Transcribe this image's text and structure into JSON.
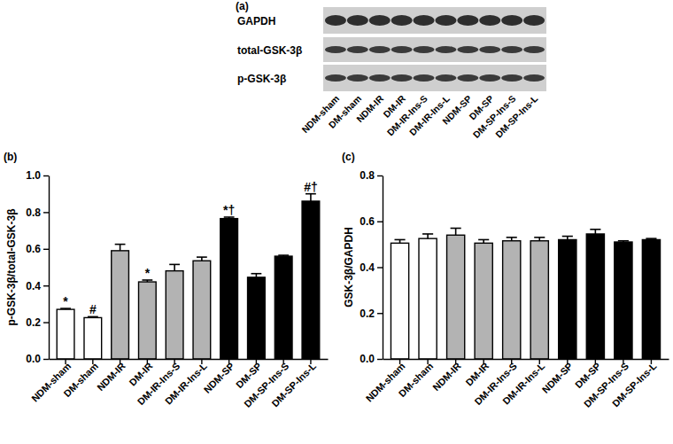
{
  "blot": {
    "label": "(a)",
    "rows": [
      "GAPDH",
      "total-GSK-3β",
      "p-GSK-3β"
    ],
    "lanes": [
      "NDM-sham",
      "DM-sham",
      "NDM-IR",
      "DM-IR",
      "DM-IR-Ins-S",
      "DM-IR-Ins-L",
      "NDM-SP",
      "DM-SP",
      "DM-SP-Ins-S",
      "DM-SP-Ins-L"
    ]
  },
  "chart_data": [
    {
      "type": "bar",
      "panel_label": "(b)",
      "y_label": "p-GSK-3β/total-GSK-3β",
      "categories": [
        "NDM-sham",
        "DM-sham",
        "NDM-IR",
        "DM-IR",
        "DM-IR-Ins-S",
        "DM-IR-Ins-L",
        "NDM-SP",
        "DM-SP",
        "DM-SP-Ins-S",
        "DM-SP-Ins-L"
      ],
      "values": [
        0.27,
        0.225,
        0.59,
        0.42,
        0.48,
        0.535,
        0.765,
        0.445,
        0.56,
        0.86
      ],
      "errors": [
        0.005,
        0.005,
        0.035,
        0.01,
        0.035,
        0.02,
        0.008,
        0.02,
        0.005,
        0.04
      ],
      "annotations": [
        "*",
        "#",
        null,
        "*",
        null,
        null,
        "*†",
        null,
        null,
        "#†"
      ],
      "colors": [
        "#ffffff",
        "#ffffff",
        "#b3b3b3",
        "#b3b3b3",
        "#b3b3b3",
        "#b3b3b3",
        "#000000",
        "#000000",
        "#000000",
        "#000000"
      ],
      "ylim": [
        0,
        1.0
      ],
      "yticks": [
        {
          "value": 0,
          "label": "0.0"
        },
        {
          "value": 0.2,
          "label": "0.2"
        },
        {
          "value": 0.4,
          "label": "0.4"
        },
        {
          "value": 0.6,
          "label": "0.6"
        },
        {
          "value": 0.8,
          "label": "0.8"
        },
        {
          "value": 1.0,
          "label": "1.0"
        }
      ],
      "grid": false
    },
    {
      "type": "bar",
      "panel_label": "(c)",
      "y_label": "GSK-3β/GAPDH",
      "categories": [
        "NDM-sham",
        "DM-sham",
        "NDM-IR",
        "DM-IR",
        "DM-IR-Ins-S",
        "DM-IR-Ins-L",
        "NDM-SP",
        "DM-SP",
        "DM-SP-Ins-S",
        "DM-SP-Ins-L"
      ],
      "values": [
        0.505,
        0.525,
        0.54,
        0.505,
        0.515,
        0.515,
        0.52,
        0.545,
        0.51,
        0.52
      ],
      "errors": [
        0.015,
        0.02,
        0.03,
        0.015,
        0.015,
        0.015,
        0.015,
        0.02,
        0.005,
        0.005
      ],
      "colors": [
        "#ffffff",
        "#ffffff",
        "#b3b3b3",
        "#b3b3b3",
        "#b3b3b3",
        "#b3b3b3",
        "#000000",
        "#000000",
        "#000000",
        "#000000"
      ],
      "ylim": [
        0,
        0.8
      ],
      "yticks": [
        {
          "value": 0,
          "label": "0.0"
        },
        {
          "value": 0.2,
          "label": "0.2"
        },
        {
          "value": 0.4,
          "label": "0.4"
        },
        {
          "value": 0.6,
          "label": "0.6"
        },
        {
          "value": 0.8,
          "label": "0.8"
        }
      ],
      "grid": false
    }
  ]
}
